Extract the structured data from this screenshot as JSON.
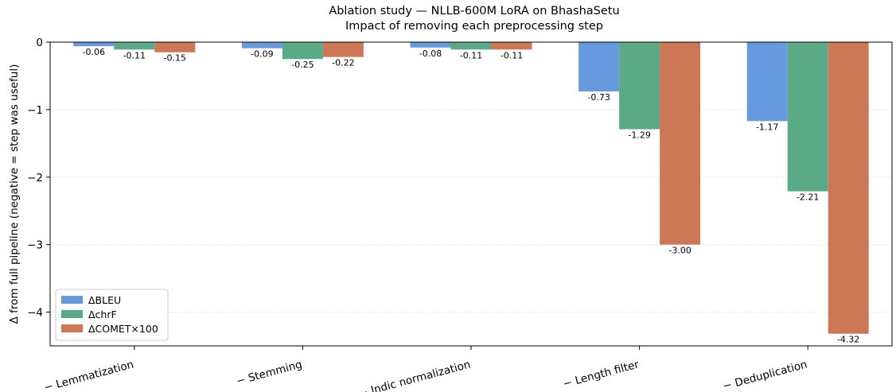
{
  "chart_data": {
    "type": "bar",
    "title": "Ablation study — NLLB-600M LoRA on BhashaSetu",
    "subtitle": "Impact of removing each preprocessing step",
    "xlabel": "",
    "ylabel": "Δ from full pipeline  (negative = step was useful)",
    "ylim": [
      -4.5,
      0.0
    ],
    "yticks": [
      0,
      -1,
      -2,
      -3,
      -4
    ],
    "ytick_labels": [
      "0",
      "−1",
      "−2",
      "−3",
      "−4"
    ],
    "grid": "horizontal",
    "legend_position": "lower-left",
    "categories": [
      "− Lemmatization",
      "− Stemming",
      "− Indic normalization",
      "− Length filter",
      "− Deduplication"
    ],
    "series": [
      {
        "name": "ΔBLEU",
        "color": "#6699dd",
        "values": [
          -0.06,
          -0.09,
          -0.08,
          -0.73,
          -1.17
        ],
        "labels": [
          "-0.06",
          "-0.09",
          "-0.08",
          "-0.73",
          "-1.17"
        ]
      },
      {
        "name": "ΔchrF",
        "color": "#5aaa88",
        "values": [
          -0.11,
          -0.25,
          -0.11,
          -1.29,
          -2.21
        ],
        "labels": [
          "-0.11",
          "-0.25",
          "-0.11",
          "-1.29",
          "-2.21"
        ]
      },
      {
        "name": "ΔCOMET×100",
        "color": "#cc7755",
        "values": [
          -0.15,
          -0.22,
          -0.11,
          -3.0,
          -4.32
        ],
        "labels": [
          "-0.15",
          "-0.22",
          "-0.11",
          "-3.00",
          "-4.32"
        ]
      }
    ]
  }
}
